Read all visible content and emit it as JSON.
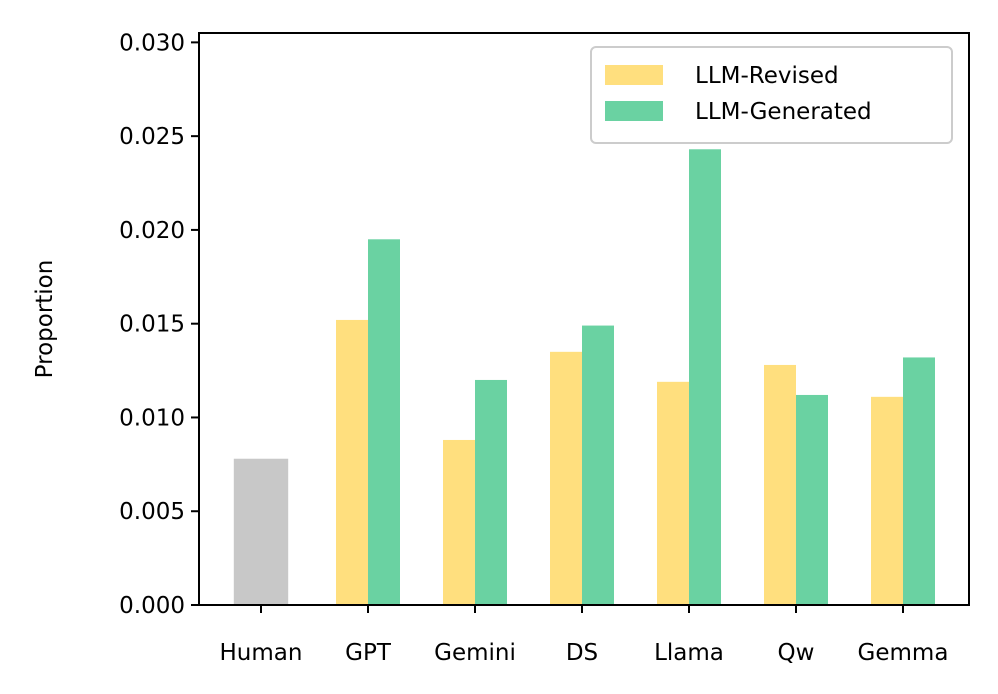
{
  "chart_data": {
    "type": "bar",
    "title": "",
    "xlabel": "",
    "ylabel": "Proportion",
    "ylim": [
      0,
      0.0305
    ],
    "yticks": [
      0.0,
      0.005,
      0.01,
      0.015,
      0.02,
      0.025,
      0.03
    ],
    "ytick_labels": [
      "0.000",
      "0.005",
      "0.010",
      "0.015",
      "0.020",
      "0.025",
      "0.030"
    ],
    "categories": [
      "Human",
      "GPT",
      "Gemini",
      "DS",
      "Llama",
      "Qw",
      "Gemma"
    ],
    "baseline": {
      "name": "Human",
      "value": 0.0078,
      "color": "#c8c8c8"
    },
    "series": [
      {
        "name": "LLM-Revised",
        "color": "#ffdf7e",
        "values": [
          null,
          0.0152,
          0.0088,
          0.0135,
          0.0119,
          0.0128,
          0.0111
        ]
      },
      {
        "name": "LLM-Generated",
        "color": "#6ad2a2",
        "values": [
          null,
          0.0195,
          0.012,
          0.0149,
          0.0243,
          0.0112,
          0.0132
        ]
      }
    ],
    "legend": {
      "position": "top-right",
      "entries": [
        "LLM-Revised",
        "LLM-Generated"
      ]
    }
  }
}
